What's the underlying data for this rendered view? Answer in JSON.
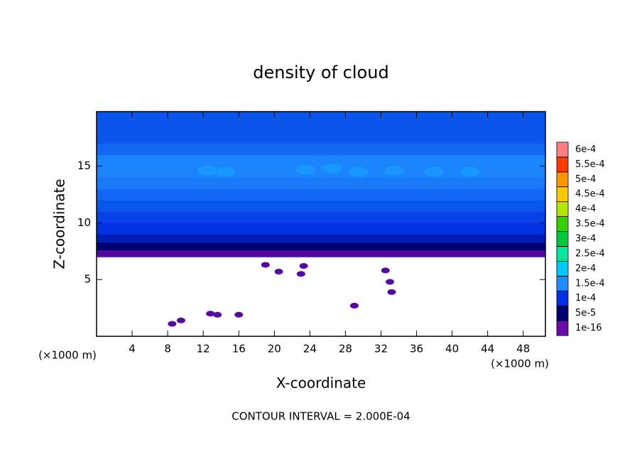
{
  "chart_data": {
    "type": "contour",
    "title": "density of cloud",
    "x_label": "X-coordinate",
    "y_label": "Z-coordinate",
    "x_unit_label": "(×1000 m)",
    "y_unit_label": "(×1000 m)",
    "footer": "CONTOUR INTERVAL = 2.000E-04",
    "xlim": [
      0,
      50.5
    ],
    "ylim": [
      0,
      19.8
    ],
    "xticks": [
      4,
      8,
      12,
      16,
      20,
      24,
      28,
      32,
      36,
      40,
      44,
      48
    ],
    "yticks": [
      5,
      10,
      15
    ],
    "colorbar": {
      "levels": [
        1e-16,
        {
          "value": 5e-05,
          "label": "5e-5"
        },
        {
          "value": 0.0001,
          "label": "1e-4"
        },
        {
          "value": 0.00015,
          "label": "1.5e-4"
        },
        {
          "value": 0.0002,
          "label": "2e-4"
        },
        {
          "value": 0.00025,
          "label": "2.5e-4"
        },
        {
          "value": 0.0003,
          "label": "3e-4"
        },
        {
          "value": 0.00035,
          "label": "3.5e-4"
        },
        {
          "value": 0.0004,
          "label": "4e-4"
        },
        {
          "value": 0.00045,
          "label": "4.5e-4"
        },
        {
          "value": 0.0005,
          "label": "5e-4"
        },
        {
          "value": 0.00055,
          "label": "5.5e-4"
        },
        {
          "value": 0.0006,
          "label": "6e-4"
        }
      ],
      "colors": [
        "#6a0aa8",
        "#000070",
        "#0030e0",
        "#1e8cff",
        "#00c8ff",
        "#00e6a0",
        "#00c83c",
        "#32d200",
        "#b4e600",
        "#ffc800",
        "#ff9600",
        "#ff3c00",
        "#ff8080"
      ]
    },
    "profile": {
      "z": [
        7.0,
        7.6,
        8.3,
        9,
        10,
        11,
        12,
        13,
        14,
        15,
        16,
        17
      ],
      "values": [
        1e-05,
        5e-05,
        8e-05,
        0.0001,
        0.00011,
        0.00012,
        0.00013,
        0.00014,
        0.000145,
        0.000145,
        0.00013,
        0.00012
      ]
    },
    "patches": {
      "x": [
        8.5,
        9.5,
        12.8,
        13.6,
        16,
        19,
        20.5,
        23.3,
        23,
        29,
        32.5,
        33,
        33.2,
        12.5,
        14.5,
        23.5,
        26.5,
        29.5,
        33.5,
        38,
        42
      ],
      "z": [
        1.1,
        1.4,
        2.0,
        1.9,
        1.9,
        6.3,
        5.7,
        6.2,
        5.5,
        2.7,
        5.8,
        4.8,
        3.9,
        14.6,
        14.5,
        14.7,
        14.8,
        14.5,
        14.6,
        14.5,
        14.5
      ],
      "values": [
        1e-05,
        1e-05,
        1e-05,
        1e-05,
        1e-05,
        1e-05,
        1e-05,
        1e-05,
        1e-05,
        1e-05,
        1e-05,
        1e-05,
        1e-05,
        0.00016,
        0.00016,
        0.00016,
        0.00016,
        0.00016,
        0.00016,
        0.00016,
        0.00016
      ]
    }
  }
}
